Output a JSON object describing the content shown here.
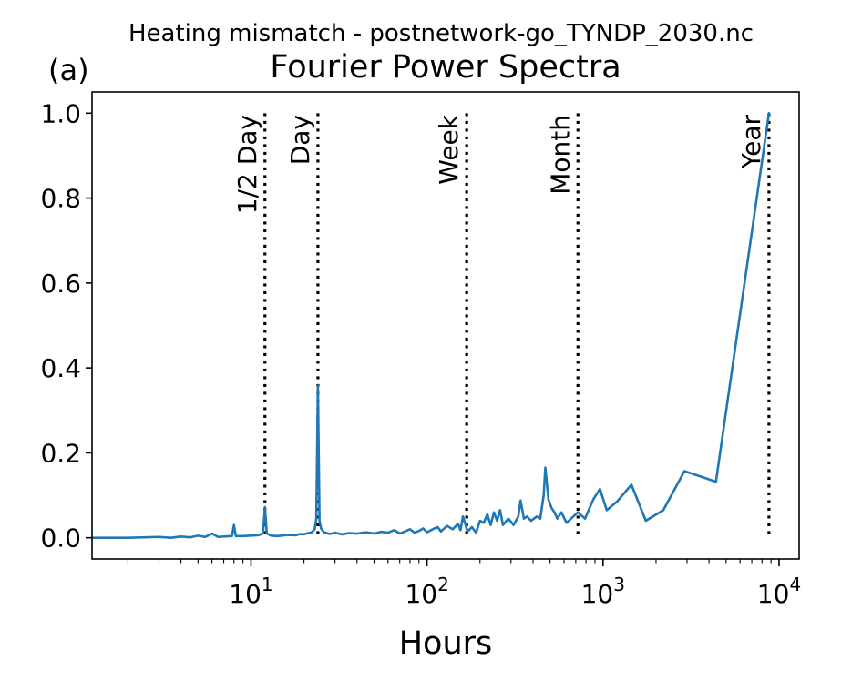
{
  "chart_data": {
    "type": "line",
    "suptitle": "Heating mismatch - postnetwork-go_TYNDP_2030.nc",
    "panel_label": "(a)",
    "title": "Fourier Power Spectra",
    "xlabel": "Hours",
    "ylabel": "",
    "x_scale": "log",
    "xlim": [
      1.25,
      13000
    ],
    "ylim": [
      -0.05,
      1.05
    ],
    "grid": false,
    "x_ticks": [
      {
        "value": 10,
        "base": "10",
        "exp": "1"
      },
      {
        "value": 100,
        "base": "10",
        "exp": "2"
      },
      {
        "value": 1000,
        "base": "10",
        "exp": "3"
      },
      {
        "value": 10000,
        "base": "10",
        "exp": "4"
      }
    ],
    "y_ticks": [
      {
        "value": 0.0,
        "label": "0.0"
      },
      {
        "value": 0.2,
        "label": "0.2"
      },
      {
        "value": 0.4,
        "label": "0.4"
      },
      {
        "value": 0.6,
        "label": "0.6"
      },
      {
        "value": 0.8,
        "label": "0.8"
      },
      {
        "value": 1.0,
        "label": "1.0"
      }
    ],
    "reference_lines": [
      {
        "label": "1/2 Day",
        "x": 12
      },
      {
        "label": "Day",
        "x": 24
      },
      {
        "label": "Week",
        "x": 168
      },
      {
        "label": "Month",
        "x": 720
      },
      {
        "label": "Year",
        "x": 8760
      }
    ],
    "series": [
      {
        "color": "#1f77b4",
        "points": [
          [
            1.25,
            0.0
          ],
          [
            2.0,
            0.0
          ],
          [
            2.5,
            0.001
          ],
          [
            3.0,
            0.002
          ],
          [
            3.5,
            0.0
          ],
          [
            4.0,
            0.003
          ],
          [
            4.5,
            0.001
          ],
          [
            5.0,
            0.005
          ],
          [
            5.5,
            0.002
          ],
          [
            6.0,
            0.01
          ],
          [
            6.5,
            0.002
          ],
          [
            7.0,
            0.003
          ],
          [
            7.8,
            0.004
          ],
          [
            8.0,
            0.03
          ],
          [
            8.2,
            0.004
          ],
          [
            9.0,
            0.004
          ],
          [
            10.0,
            0.005
          ],
          [
            11.0,
            0.006
          ],
          [
            11.7,
            0.01
          ],
          [
            12.0,
            0.072
          ],
          [
            12.3,
            0.01
          ],
          [
            13.0,
            0.005
          ],
          [
            14.0,
            0.004
          ],
          [
            15.0,
            0.005
          ],
          [
            16.0,
            0.007
          ],
          [
            17.0,
            0.006
          ],
          [
            18.0,
            0.006
          ],
          [
            19.0,
            0.009
          ],
          [
            20.0,
            0.008
          ],
          [
            21.0,
            0.011
          ],
          [
            22.0,
            0.012
          ],
          [
            23.0,
            0.02
          ],
          [
            23.5,
            0.045
          ],
          [
            24.0,
            0.358
          ],
          [
            24.5,
            0.04
          ],
          [
            25.0,
            0.022
          ],
          [
            26.0,
            0.013
          ],
          [
            28.0,
            0.009
          ],
          [
            30.0,
            0.012
          ],
          [
            33.0,
            0.008
          ],
          [
            36.0,
            0.011
          ],
          [
            40.0,
            0.01
          ],
          [
            45.0,
            0.013
          ],
          [
            50.0,
            0.01
          ],
          [
            55.0,
            0.014
          ],
          [
            60.0,
            0.012
          ],
          [
            65.0,
            0.018
          ],
          [
            70.0,
            0.01
          ],
          [
            75.0,
            0.015
          ],
          [
            80.0,
            0.02
          ],
          [
            85.0,
            0.012
          ],
          [
            90.0,
            0.016
          ],
          [
            95.0,
            0.022
          ],
          [
            100.0,
            0.013
          ],
          [
            110.0,
            0.022
          ],
          [
            115.0,
            0.025
          ],
          [
            120.0,
            0.015
          ],
          [
            130.0,
            0.028
          ],
          [
            140.0,
            0.02
          ],
          [
            150.0,
            0.033
          ],
          [
            155.0,
            0.018
          ],
          [
            160.0,
            0.05
          ],
          [
            170.0,
            0.015
          ],
          [
            180.0,
            0.025
          ],
          [
            190.0,
            0.012
          ],
          [
            200.0,
            0.04
          ],
          [
            210.0,
            0.035
          ],
          [
            220.0,
            0.055
          ],
          [
            230.0,
            0.03
          ],
          [
            240.0,
            0.06
          ],
          [
            250.0,
            0.04
          ],
          [
            260.0,
            0.065
          ],
          [
            270.0,
            0.03
          ],
          [
            290.0,
            0.045
          ],
          [
            310.0,
            0.03
          ],
          [
            330.0,
            0.05
          ],
          [
            340.0,
            0.088
          ],
          [
            355.0,
            0.045
          ],
          [
            370.0,
            0.05
          ],
          [
            390.0,
            0.04
          ],
          [
            420.0,
            0.05
          ],
          [
            440.0,
            0.045
          ],
          [
            460.0,
            0.1
          ],
          [
            470.0,
            0.165
          ],
          [
            490.0,
            0.09
          ],
          [
            510.0,
            0.07
          ],
          [
            530.0,
            0.06
          ],
          [
            550.0,
            0.045
          ],
          [
            580.0,
            0.06
          ],
          [
            620.0,
            0.035
          ],
          [
            720.0,
            0.06
          ],
          [
            790.0,
            0.045
          ],
          [
            880.0,
            0.09
          ],
          [
            960.0,
            0.115
          ],
          [
            1050.0,
            0.065
          ],
          [
            1200.0,
            0.085
          ],
          [
            1450.0,
            0.125
          ],
          [
            1750.0,
            0.04
          ],
          [
            2200.0,
            0.065
          ],
          [
            2900.0,
            0.157
          ],
          [
            4380.0,
            0.132
          ],
          [
            8760.0,
            1.0
          ]
        ]
      }
    ]
  }
}
